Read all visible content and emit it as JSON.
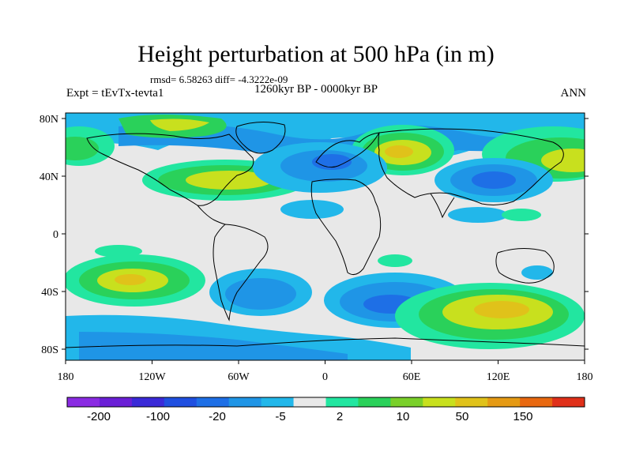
{
  "title": "Height perturbation at 500 hPa (in m)",
  "stats": "rmsd= 6.58263 diff= -4.3222e-09",
  "experiment": "Expt = tEvTx-tevta1",
  "period": "1260kyr BP - 0000kyr BP",
  "season": "ANN",
  "lat_ticks": [
    "80N",
    "40N",
    "0",
    "40S",
    "80S"
  ],
  "lon_ticks": [
    "180",
    "120W",
    "60W",
    "0",
    "60E",
    "120E",
    "180"
  ],
  "colorbar": {
    "labels": [
      "-200",
      "-100",
      "-20",
      "-5",
      "2",
      "10",
      "50",
      "150"
    ],
    "colors": [
      "#8a2be2",
      "#6a1fd6",
      "#3a2ad8",
      "#1f4fe0",
      "#1e6fe6",
      "#1f95e6",
      "#22b7ea",
      "#e8e8e8",
      "#22e6a0",
      "#2ad15a",
      "#7ad02a",
      "#c8e01e",
      "#e0c21a",
      "#e59a14",
      "#e86810",
      "#e0301a"
    ]
  },
  "palette": {
    "deep_blue": "#1e6fe6",
    "mid_blue": "#1f95e6",
    "light_blue": "#22b7ea",
    "neutral": "#e8e8e8",
    "teal": "#22e6a0",
    "green": "#2ad15a",
    "yellow_green": "#c8e01e",
    "yellow": "#e0c21a",
    "coastline": "#000000"
  }
}
